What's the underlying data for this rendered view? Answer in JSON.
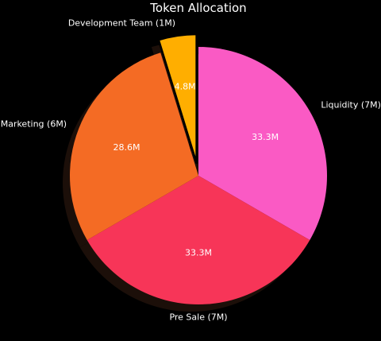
{
  "chart_data": {
    "type": "pie",
    "title": "Token Allocation",
    "slices": [
      {
        "label": "Liquidity (7M)",
        "value": 7,
        "pct_label": "33.3M",
        "color": "#fa5ac4",
        "explode": false
      },
      {
        "label": "Pre Sale (7M)",
        "value": 7,
        "pct_label": "33.3M",
        "color": "#f73558",
        "explode": false
      },
      {
        "label": "Marketing (6M)",
        "value": 6,
        "pct_label": "28.6M",
        "color": "#f46b24",
        "explode": false
      },
      {
        "label": "Development Team (1M)",
        "value": 1,
        "pct_label": "4.8M",
        "color": "#ffae00",
        "explode": true
      }
    ],
    "start_angle_deg": 90,
    "direction": "clockwise",
    "shadow": true
  }
}
